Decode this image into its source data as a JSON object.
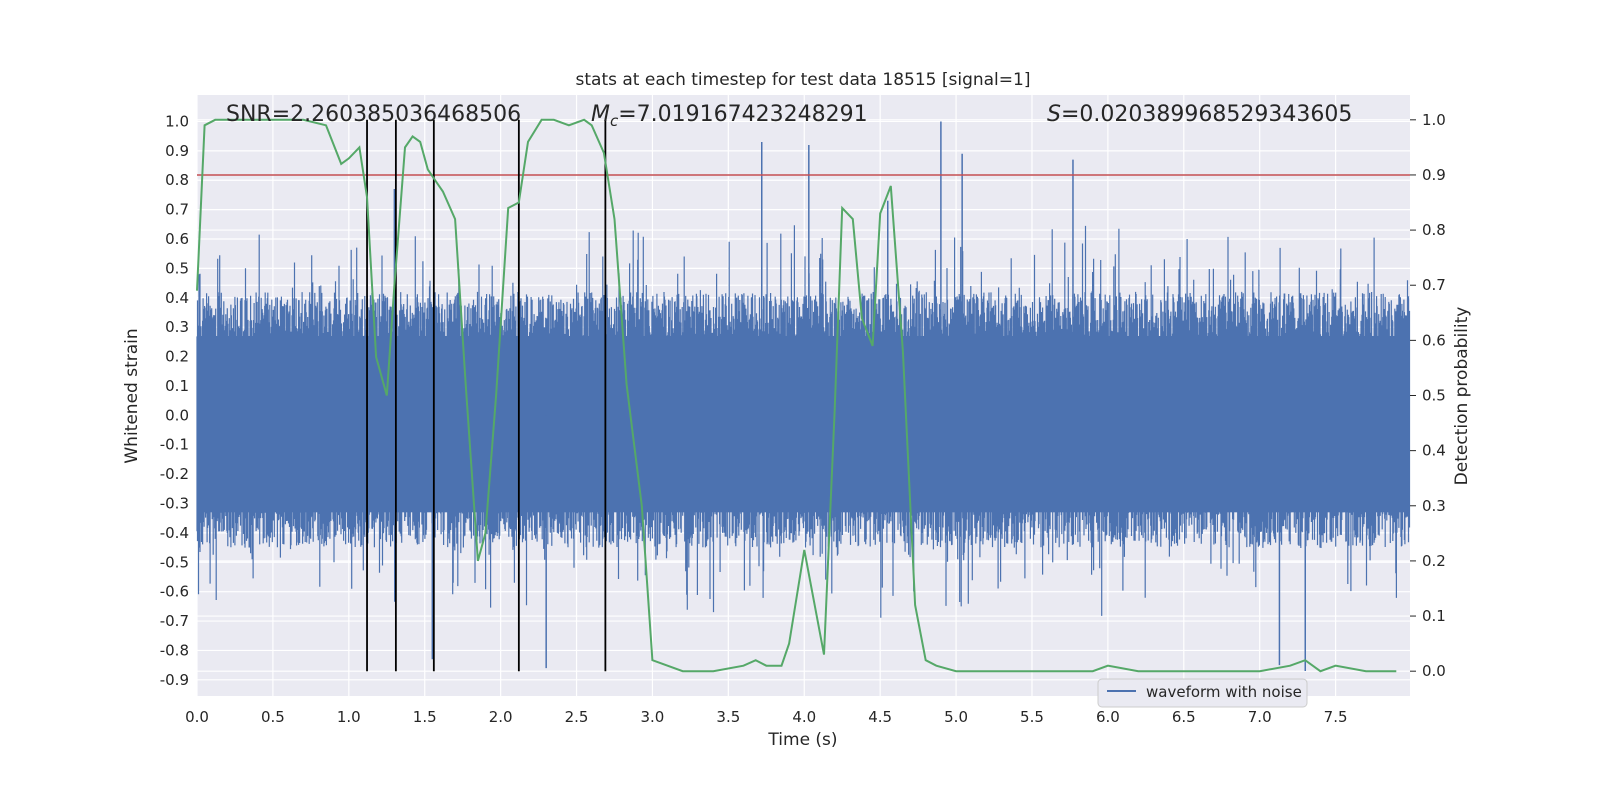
{
  "chart_data": {
    "type": "line",
    "title": "stats at each timestep for test data 18515 [signal=1]",
    "xlabel": "Time (s)",
    "ylabel": "Whitened strain",
    "y2label": "Detection probability",
    "xlim": [
      0.0,
      7.99
    ],
    "ylim": [
      -0.955,
      1.09
    ],
    "y2lim": [
      -0.045,
      1.045
    ],
    "x_ticks": [
      "0.0",
      "0.5",
      "1.0",
      "1.5",
      "2.0",
      "2.5",
      "3.0",
      "3.5",
      "4.0",
      "4.5",
      "5.0",
      "5.5",
      "6.0",
      "6.5",
      "7.0",
      "7.5"
    ],
    "y_ticks": [
      "1.0",
      "0.9",
      "0.8",
      "0.7",
      "0.6",
      "0.5",
      "0.4",
      "0.3",
      "0.2",
      "0.1",
      "0.0",
      "-0.1",
      "-0.2",
      "-0.3",
      "-0.4",
      "-0.5",
      "-0.6",
      "-0.7",
      "-0.8",
      "-0.9"
    ],
    "y2_ticks": [
      "1.0",
      "0.9",
      "0.8",
      "0.7",
      "0.6",
      "0.5",
      "0.4",
      "0.3",
      "0.2",
      "0.1",
      "0.0"
    ],
    "grid": true,
    "legend_position": "bottom-right",
    "annotations": {
      "snr": "SNR=2.260385036468506",
      "mc_symbol": "M",
      "mc_sub": "c",
      "mc_value": "=7.019167423248291",
      "s_symbol": "S",
      "s_value": "=0.020389968529343605"
    },
    "series": [
      {
        "name": "waveform with noise",
        "axis": "left",
        "color": "#4c72b0",
        "sample_rate_note": "dense noise trace",
        "upper_envelope_typical": 0.42,
        "lower_envelope_typical": -0.45,
        "spikes": [
          [
            1.3,
            0.77
          ],
          [
            1.55,
            -0.83
          ],
          [
            3.72,
            0.93
          ],
          [
            4.03,
            0.92
          ],
          [
            4.55,
            0.73
          ],
          [
            4.9,
            1.0
          ],
          [
            5.04,
            0.89
          ],
          [
            5.77,
            0.87
          ],
          [
            7.13,
            -0.85
          ],
          [
            7.3,
            -0.87
          ],
          [
            2.3,
            -0.86
          ]
        ]
      },
      {
        "name": "detection probability",
        "axis": "right",
        "color": "#55a868",
        "x": [
          0.0,
          0.05,
          0.12,
          0.3,
          0.5,
          0.7,
          0.85,
          0.95,
          1.0,
          1.07,
          1.12,
          1.18,
          1.25,
          1.3,
          1.37,
          1.42,
          1.47,
          1.52,
          1.57,
          1.62,
          1.7,
          1.77,
          1.85,
          1.9,
          1.97,
          2.05,
          2.12,
          2.18,
          2.27,
          2.35,
          2.45,
          2.55,
          2.6,
          2.68,
          2.75,
          2.83,
          2.93,
          3.0,
          3.2,
          3.4,
          3.6,
          3.68,
          3.75,
          3.85,
          3.9,
          4.0,
          4.13,
          4.2,
          4.25,
          4.32,
          4.38,
          4.45,
          4.5,
          4.57,
          4.65,
          4.73,
          4.8,
          4.87,
          5.0,
          5.3,
          5.5,
          5.9,
          6.0,
          6.2,
          6.5,
          7.0,
          7.2,
          7.3,
          7.4,
          7.5,
          7.7,
          7.9
        ],
        "values": [
          0.69,
          0.99,
          1.0,
          1.0,
          1.0,
          1.0,
          0.99,
          0.92,
          0.93,
          0.95,
          0.86,
          0.57,
          0.5,
          0.7,
          0.95,
          0.97,
          0.96,
          0.91,
          0.89,
          0.87,
          0.82,
          0.52,
          0.2,
          0.25,
          0.5,
          0.84,
          0.85,
          0.96,
          1.0,
          1.0,
          0.99,
          1.0,
          0.99,
          0.94,
          0.82,
          0.52,
          0.3,
          0.02,
          0.0,
          0.0,
          0.01,
          0.02,
          0.01,
          0.01,
          0.05,
          0.22,
          0.03,
          0.47,
          0.84,
          0.82,
          0.64,
          0.59,
          0.83,
          0.88,
          0.58,
          0.12,
          0.02,
          0.01,
          0.0,
          0.0,
          0.0,
          0.0,
          0.01,
          0.0,
          0.0,
          0.0,
          0.01,
          0.02,
          0.0,
          0.01,
          0.0,
          0.0
        ]
      }
    ],
    "threshold_line": {
      "value": 0.9,
      "axis": "right",
      "color": "#c44e52"
    },
    "vertical_markers": [
      1.12,
      1.31,
      1.56,
      2.12,
      2.69
    ]
  }
}
